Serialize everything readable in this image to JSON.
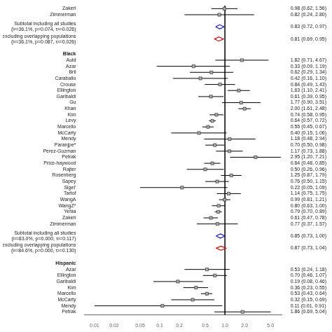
{
  "chart_data": {
    "type": "forest",
    "log": "x",
    "grid": false,
    "xlim": [
      0.007,
      7.5
    ],
    "xticks": [
      0.01,
      0.02,
      0.05,
      0.1,
      0.2,
      0.5,
      {
        "value": 1,
        "label": "1.0"
      },
      {
        "value": 2,
        "label": "2.0"
      },
      {
        "value": 5,
        "label": "5.0"
      }
    ],
    "reference_x": 1,
    "color": "#aaaaaa",
    "sections": [
      {
        "studies": [
          {
            "name": "Zakeri",
            "est": 0.98,
            "lo": 0.62,
            "hi": 1.56,
            "ci_text": "0.98 (0.62, 1.56)"
          },
          {
            "name": "Zimmerman",
            "est": 0.82,
            "lo": 0.24,
            "hi": 2.8,
            "ci_text": "0.82 (0.24, 2.80)"
          }
        ],
        "subtotals": [
          {
            "label": "Subtotal including all studies",
            "sublabel": "(i²=36.1%, p=0.074, τ²=0.026)",
            "est": 0.83,
            "lo": 0.72,
            "hi": 0.97,
            "ci_text": "0.83 (0.72, 0.97)",
            "color": "#1111cc"
          },
          {
            "label": "Subtotal excluding overlapping populations",
            "sublabel": "(i²=36.1%, p=0.087, τ²=0.026)",
            "est": 0.81,
            "lo": 0.69,
            "hi": 0.95,
            "ci_text": "0.81 (0.69, 0.95)",
            "color": "#cc1111"
          }
        ]
      },
      {
        "label": "Black",
        "studies": [
          {
            "name": "Auld",
            "est": 1.82,
            "lo": 0.71,
            "hi": 4.67,
            "ci_text": "1.82 (0.71, 4.67)"
          },
          {
            "name": "Azar",
            "est": 0.33,
            "lo": 0.09,
            "hi": 1.19,
            "ci_text": "0.33 (0.09, 1.19)"
          },
          {
            "name": "Bril",
            "est": 0.62,
            "lo": 0.29,
            "hi": 1.34,
            "ci_text": "0.62 (0.29, 1.34)"
          },
          {
            "name": "Caraballo",
            "est": 0.42,
            "lo": 0.16,
            "hi": 1.1,
            "ci_text": "0.42 (0.16, 1.10)"
          },
          {
            "name": "Crouse",
            "est": 0.84,
            "lo": 0.49,
            "hi": 1.43,
            "ci_text": "0.84 (0.49, 1.43)"
          },
          {
            "name": "Ellington",
            "est": 1.63,
            "lo": 1.1,
            "hi": 2.41,
            "ci_text": "1.63 (1.10, 2.41)"
          },
          {
            "name": "Garibaldi",
            "est": 0.61,
            "lo": 0.39,
            "hi": 0.95,
            "ci_text": "0.61 (0.39, 0.95)"
          },
          {
            "name": "Gu",
            "est": 1.77,
            "lo": 0.9,
            "hi": 3.51,
            "ci_text": "1.77 (0.90, 3.51)"
          },
          {
            "name": "Khan",
            "est": 2.0,
            "lo": 1.61,
            "hi": 2.48,
            "ci_text": "2.00 (1.61, 2.48)"
          },
          {
            "name": "Kim",
            "est": 0.74,
            "lo": 0.58,
            "hi": 0.95,
            "ci_text": "0.74 (0.58, 0.95)"
          },
          {
            "name": "Levy",
            "est": 0.64,
            "lo": 0.57,
            "hi": 0.72,
            "ci_text": "0.64 (0.57, 0.72)"
          },
          {
            "name": "Marcello",
            "est": 0.55,
            "lo": 0.45,
            "hi": 0.67,
            "ci_text": "0.55 (0.45, 0.67)"
          },
          {
            "name": "McCarty",
            "est": 0.4,
            "lo": 0.15,
            "hi": 1.06,
            "ci_text": "0.40 (0.15, 1.06)"
          },
          {
            "name": "Mendy",
            "est": 1.18,
            "lo": 0.48,
            "hi": 2.94,
            "ci_text": "1.18 (0.48, 2.94)"
          },
          {
            "name": "Paranjpe*",
            "est": 0.7,
            "lo": 0.5,
            "hi": 0.98,
            "ci_text": "0.70 (0.50, 0.98)"
          },
          {
            "name": "Perez-Guzman",
            "est": 1.17,
            "lo": 0.73,
            "hi": 1.88,
            "ci_text": "1.17 (0.73, 1.88)"
          },
          {
            "name": "Petrak",
            "est": 2.95,
            "lo": 1.2,
            "hi": 7.21,
            "ci_text": "2.95 (1.20, 7.21)"
          },
          {
            "name": "Price-haywood",
            "est": 0.64,
            "lo": 0.48,
            "hi": 0.85,
            "ci_text": "0.64 (0.48, 0.85)"
          },
          {
            "name": "Rajter",
            "est": 0.5,
            "lo": 0.26,
            "hi": 0.96,
            "ci_text": "0.50 (0.26, 0.96)"
          },
          {
            "name": "Rosenberg",
            "est": 1.25,
            "lo": 0.87,
            "hi": 1.79,
            "ci_text": "1.25 (0.87, 1.79)"
          },
          {
            "name": "Sapey",
            "est": 0.76,
            "lo": 0.5,
            "hi": 1.15,
            "ci_text": "0.76 (0.50, 1.15)"
          },
          {
            "name": "Sigel’",
            "est": 0.22,
            "lo": 0.05,
            "hi": 1.09,
            "ci_text": "0.22 (0.05, 1.09)"
          },
          {
            "name": "Tartof",
            "est": 1.14,
            "lo": 0.75,
            "hi": 1.75,
            "ci_text": "1.14 (0.75, 1.75)"
          },
          {
            "name": "WangA",
            "est": 0.99,
            "lo": 0.81,
            "hi": 1.21,
            "ci_text": "0.99 (0.81, 1.21)"
          },
          {
            "name": "WangZ*",
            "est": 0.8,
            "lo": 0.63,
            "hi": 1.0,
            "ci_text": "0.80 (0.63, 1.00)"
          },
          {
            "name": "Yehia",
            "est": 0.79,
            "lo": 0.7,
            "hi": 0.89,
            "ci_text": "0.79 (0.70, 0.89)"
          },
          {
            "name": "Zakeri",
            "est": 0.61,
            "lo": 0.47,
            "hi": 0.78,
            "ci_text": "0.61 (0.47, 0.78)"
          },
          {
            "name": "Zimmerman",
            "est": 0.77,
            "lo": 0.37,
            "hi": 1.57,
            "ci_text": "0.77 (0.37, 1.57)"
          }
        ],
        "subtotals": [
          {
            "label": "Subtotal including all studies",
            "sublabel": "(i²=83.0%, p=0.000, τ²=0.117)",
            "est": 0.85,
            "lo": 0.73,
            "hi": 1.0,
            "ci_text": "0.85 (0.73, 1.00)",
            "color": "#1111cc"
          },
          {
            "label": "Subtotal excluding overlapping populations",
            "sublabel": "(i²=84.6%, p=0.000, τ²=0.130)",
            "est": 0.87,
            "lo": 0.73,
            "hi": 1.04,
            "ci_text": "0.87 (0.73, 1.04)",
            "color": "#cc1111"
          }
        ]
      },
      {
        "label": "Hispanic",
        "studies": [
          {
            "name": "Azar",
            "est": 0.53,
            "lo": 0.24,
            "hi": 1.18,
            "ci_text": "0.53 (0.24, 1.18)"
          },
          {
            "name": "Ellington",
            "est": 0.7,
            "lo": 0.46,
            "hi": 1.07,
            "ci_text": "0.70 (0.46, 1.07)"
          },
          {
            "name": "Garibaldi",
            "est": 0.19,
            "lo": 0.08,
            "hi": 0.46,
            "ci_text": "0.19 (0.08, 0.46)"
          },
          {
            "name": "Kim",
            "est": 0.36,
            "lo": 0.23,
            "hi": 0.55,
            "ci_text": "0.36 (0.23, 0.55)"
          },
          {
            "name": "Marcello",
            "est": 0.53,
            "lo": 0.43,
            "hi": 0.64,
            "ci_text": "0.53 (0.43, 0.64)"
          },
          {
            "name": "McCarty",
            "est": 0.32,
            "lo": 0.15,
            "hi": 0.69,
            "ci_text": "0.32 (0.15, 0.69)"
          },
          {
            "name": "Mendy",
            "est": 0.11,
            "lo": 0.01,
            "hi": 0.91,
            "ci_text": "0.11 (0.01, 0.91)"
          },
          {
            "name": "Petrak",
            "est": 1.86,
            "lo": 0.69,
            "hi": 5.04,
            "ci_text": "1.86 (0.69, 5.04)"
          }
        ],
        "subtotals": []
      }
    ]
  }
}
